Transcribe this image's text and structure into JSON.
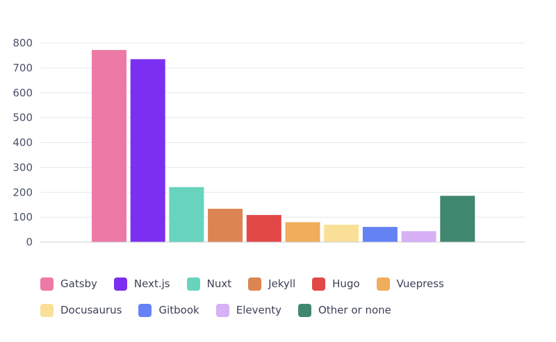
{
  "chart_data": {
    "type": "bar",
    "title": "",
    "xlabel": "",
    "ylabel": "",
    "ylim": [
      0,
      800
    ],
    "yticks": [
      0,
      100,
      200,
      300,
      400,
      500,
      600,
      700,
      800
    ],
    "grid": true,
    "legend_position": "bottom",
    "categories": [
      "Gatsby",
      "Next.js",
      "Nuxt",
      "Jekyll",
      "Hugo",
      "Vuepress",
      "Docusaurus",
      "Gitbook",
      "Eleventy",
      "Other or none"
    ],
    "values": [
      772,
      735,
      221,
      134,
      109,
      80,
      70,
      61,
      44,
      186
    ],
    "colors": [
      "#ed7aa6",
      "#7b2ff0",
      "#68d4be",
      "#dc8552",
      "#e14846",
      "#f0ad5c",
      "#f9e096",
      "#6582f5",
      "#d7b0f5",
      "#40876f"
    ]
  },
  "legend": {
    "rows": [
      [
        {
          "label": "Gatsby",
          "color": "#ed7aa6"
        },
        {
          "label": "Next.js",
          "color": "#7b2ff0"
        },
        {
          "label": "Nuxt",
          "color": "#68d4be"
        },
        {
          "label": "Jekyll",
          "color": "#dc8552"
        },
        {
          "label": "Hugo",
          "color": "#e14846"
        },
        {
          "label": "Vuepress",
          "color": "#f0ad5c"
        }
      ],
      [
        {
          "label": "Docusaurus",
          "color": "#f9e096"
        },
        {
          "label": "Gitbook",
          "color": "#6582f5"
        },
        {
          "label": "Eleventy",
          "color": "#d7b0f5"
        },
        {
          "label": "Other or none",
          "color": "#40876f"
        }
      ]
    ]
  },
  "style": {
    "grid_color": "#e6e8ee",
    "axis_color": "#c9ccd6"
  }
}
